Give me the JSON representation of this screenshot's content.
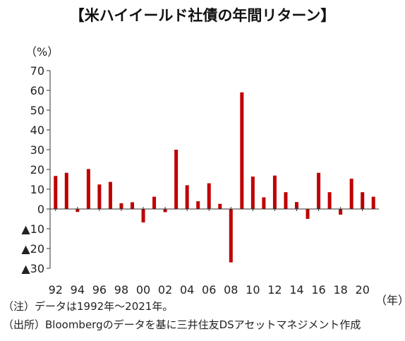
{
  "title": "【米ハイイールド社債の年間リターン】",
  "y_unit": "（%）",
  "x_unit": "（年）",
  "notes": {
    "note1": "（注）データは1992年～2021年。",
    "note2": "（出所）Bloombergのデータを基に三井住友DSアセットマネジメント作成"
  },
  "colors": {
    "bar": "#c00000",
    "axis": "#333333"
  },
  "chart_data": {
    "type": "bar",
    "title": "【米ハイイールド社債の年間リターン】",
    "ylabel": "（%）",
    "xlabel": "（年）",
    "ylim": [
      -30,
      70
    ],
    "yticks": [
      70,
      60,
      50,
      40,
      30,
      20,
      10,
      0,
      -10,
      -20,
      -30
    ],
    "ytick_labels": [
      "70",
      "60",
      "50",
      "40",
      "30",
      "20",
      "10",
      "0",
      "▲10",
      "▲20",
      "▲30"
    ],
    "grid": false,
    "categories": [
      "1992",
      "1993",
      "1994",
      "1995",
      "1996",
      "1997",
      "1998",
      "1999",
      "2000",
      "2001",
      "2002",
      "2003",
      "2004",
      "2005",
      "2006",
      "2007",
      "2008",
      "2009",
      "2010",
      "2011",
      "2012",
      "2013",
      "2014",
      "2015",
      "2016",
      "2017",
      "2018",
      "2019",
      "2020",
      "2021"
    ],
    "x_tick_labels": [
      "92",
      "",
      "94",
      "",
      "96",
      "",
      "98",
      "",
      "00",
      "",
      "02",
      "",
      "04",
      "",
      "06",
      "",
      "08",
      "",
      "10",
      "",
      "12",
      "",
      "14",
      "",
      "16",
      "",
      "18",
      "",
      "20",
      ""
    ],
    "values": [
      16.7,
      18.3,
      -1.5,
      20.2,
      12.4,
      13.7,
      2.9,
      3.4,
      -6.8,
      6.2,
      -1.6,
      30.0,
      12.0,
      3.9,
      13.0,
      2.6,
      -27.0,
      59.0,
      16.4,
      5.9,
      16.9,
      8.5,
      3.5,
      -5.0,
      18.3,
      8.5,
      -2.9,
      15.3,
      8.5,
      6.2
    ]
  }
}
